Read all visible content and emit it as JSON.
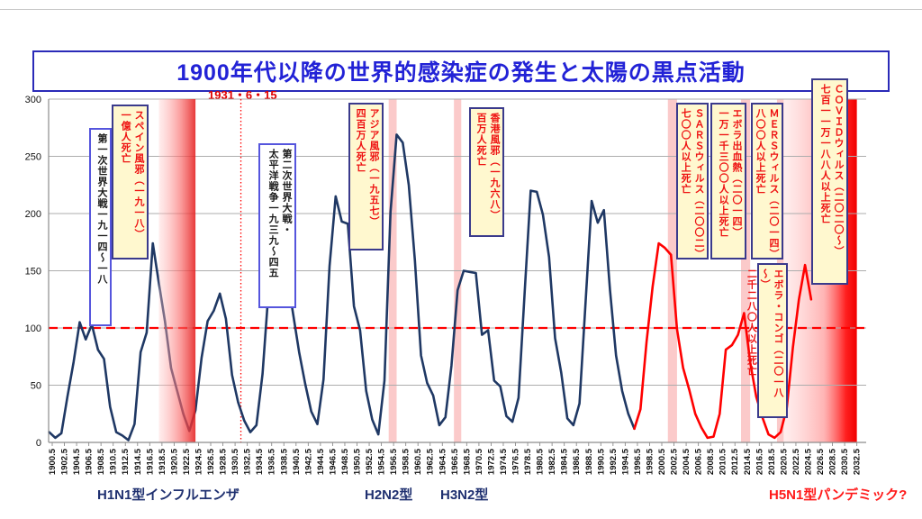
{
  "page": {
    "title": "1900年代以降の世界的感染症の発生と太陽の黒点活動",
    "date_marker": "1931・6・15"
  },
  "bottom_labels": {
    "h1n1": "H1N1型インフルエンザ",
    "h2n2": "H2N2型",
    "h3n2": "H3N2型",
    "h5n1": "H5N1型パンデミック?"
  },
  "annotations": {
    "ww1": {
      "style": "white",
      "lines": [
        "第一次世界大戦一九一四～一八"
      ]
    },
    "spanish_flu": {
      "style": "yellow",
      "lines": [
        "スペイン風邪（一九一八）",
        "一億人死亡"
      ]
    },
    "ww2": {
      "style": "white",
      "lines": [
        "第二次世界大戦・",
        "太平洋戦争一九三九～四五"
      ]
    },
    "asian_flu": {
      "style": "yellow",
      "lines": [
        "アジア風邪（一九五七）",
        "四百万人死亡"
      ]
    },
    "hongkong_flu": {
      "style": "yellow",
      "lines": [
        "香港風邪（一九六八）",
        "百万人死亡"
      ]
    },
    "sars": {
      "style": "yellow",
      "lines": [
        "ＳＡＲＳウィルス（二〇〇二）",
        "七〇〇人以上死亡"
      ]
    },
    "ebola_2014": {
      "style": "yellow",
      "lines": [
        "エボラ出血熱（二〇一四）",
        "一万一千三〇〇人以上死亡"
      ]
    },
    "mers": {
      "style": "yellow",
      "lines": [
        "ＭＥＲＳウィルス（二〇一四）",
        "八〇〇人以上死亡"
      ]
    },
    "covid": {
      "style": "yellow",
      "lines": [
        "ＣＯＶＩＤウィルス（二〇二〇～）",
        "七百一一万一八八人以上死亡"
      ]
    },
    "ebola_congo": {
      "style": "yellow",
      "lines": [
        "エボラ・コンゴ（二〇一八～）",
        "二千二八〇人以上死亡"
      ]
    }
  },
  "colors": {
    "title_blue": "#2222d6",
    "line_historic": "#1f3864",
    "line_recent": "#ff0000",
    "reference_red": "#ff0000",
    "band_pink": "rgba(247,158,158,0.55)",
    "grid_gray": "#adadad",
    "annotation_yellow": "#fff8cf",
    "annotation_border": "#3a3a8c"
  },
  "chart_data": {
    "type": "line",
    "title": "1900年代以降の世界的感染症の発生と太陽の黒点活動",
    "xlabel": "",
    "ylabel": "",
    "ylim": [
      0,
      300
    ],
    "xlim": [
      1900.5,
      2034
    ],
    "grid": true,
    "legend": "none",
    "y_ticks": [
      0,
      50,
      100,
      150,
      200,
      250,
      300
    ],
    "x_ticks": [
      "1900.5",
      "1902.5",
      "1904.5",
      "1906.5",
      "1908.5",
      "1910.5",
      "1912.5",
      "1914.5",
      "1916.5",
      "1918.5",
      "1920.5",
      "1922.5",
      "1924.5",
      "1926.5",
      "1928.5",
      "1930.5",
      "1932.5",
      "1934.5",
      "1936.5",
      "1938.5",
      "1940.5",
      "1942.5",
      "1944.5",
      "1946.5",
      "1948.5",
      "1950.5",
      "1952.5",
      "1954.5",
      "1956.5",
      "1958.5",
      "1960.5",
      "1962.5",
      "1964.5",
      "1966.5",
      "1968.5",
      "1970.5",
      "1972.5",
      "1974.5",
      "1976.5",
      "1978.5",
      "1980.5",
      "1982.5",
      "1984.5",
      "1986.5",
      "1988.5",
      "1990.5",
      "1992.5",
      "1994.5",
      "1996.5",
      "1998.5",
      "2000.5",
      "2002.5",
      "2004.5",
      "2006.5",
      "2008.5",
      "2010.5",
      "2012.5",
      "2014.5",
      "2016.5",
      "2018.5",
      "2020.5",
      "2022.5",
      "2024.5",
      "2026.5",
      "2028.5",
      "2030.5",
      "2032.5"
    ],
    "reference_line": {
      "value": 100,
      "style": "red-dashed"
    },
    "event_marker": {
      "x": 1931.45,
      "label": "1931・6・15",
      "style": "red-dotted-vertical"
    },
    "series": [
      {
        "name": "sunspot-number-1900-1996",
        "color": "#1f3864",
        "year_start": 1900,
        "values": [
          9,
          4,
          8,
          40,
          70,
          105,
          90,
          103,
          81,
          73,
          31,
          9,
          6,
          2,
          16,
          79,
          96,
          174,
          139,
          106,
          65,
          45,
          25,
          10,
          28,
          74,
          106,
          115,
          130,
          108,
          59,
          35,
          19,
          9,
          15,
          60,
          133,
          191,
          183,
          148,
          113,
          79,
          51,
          27,
          16,
          55,
          154,
          215,
          193,
          191,
          119,
          98,
          45,
          20,
          7,
          54,
          201,
          269,
          262,
          225,
          159,
          76,
          52,
          41,
          15,
          22,
          67,
          133,
          150,
          149,
          148,
          94,
          98,
          54,
          49,
          23,
          18,
          39,
          131,
          220,
          219,
          199,
          162,
          91,
          61,
          21,
          15,
          34,
          123,
          211,
          192,
          203,
          133,
          76,
          45,
          25,
          12
        ]
      },
      {
        "name": "sunspot-number-1996-2025",
        "color": "#ff0000",
        "year_start": 1996,
        "values": [
          12,
          29,
          88,
          136,
          174,
          170,
          164,
          99,
          65,
          46,
          25,
          13,
          4,
          5,
          25,
          81,
          85,
          94,
          113,
          70,
          40,
          22,
          7,
          4,
          9,
          30,
          83,
          125,
          155,
          125
        ]
      }
    ],
    "bands": [
      {
        "name": "spanish-flu-band",
        "from": 1918,
        "to": 1924,
        "type": "gradient-red",
        "over_line": true
      },
      {
        "name": "asian-flu-band",
        "from": 1955.7,
        "to": 1957,
        "type": "pink"
      },
      {
        "name": "hongkong-flu-band",
        "from": 1966.4,
        "to": 1967.6,
        "type": "pink"
      },
      {
        "name": "sars-band",
        "from": 2001.5,
        "to": 2003,
        "type": "pink"
      },
      {
        "name": "mers-ebola-band",
        "from": 2013.5,
        "to": 2015,
        "type": "pink"
      },
      {
        "name": "ebola-congo-band",
        "from": 2019.4,
        "to": 2020.5,
        "type": "pink"
      },
      {
        "name": "covid-band",
        "from": 2020.5,
        "to": 2032.5,
        "type": "gradient-red-strong"
      }
    ]
  }
}
